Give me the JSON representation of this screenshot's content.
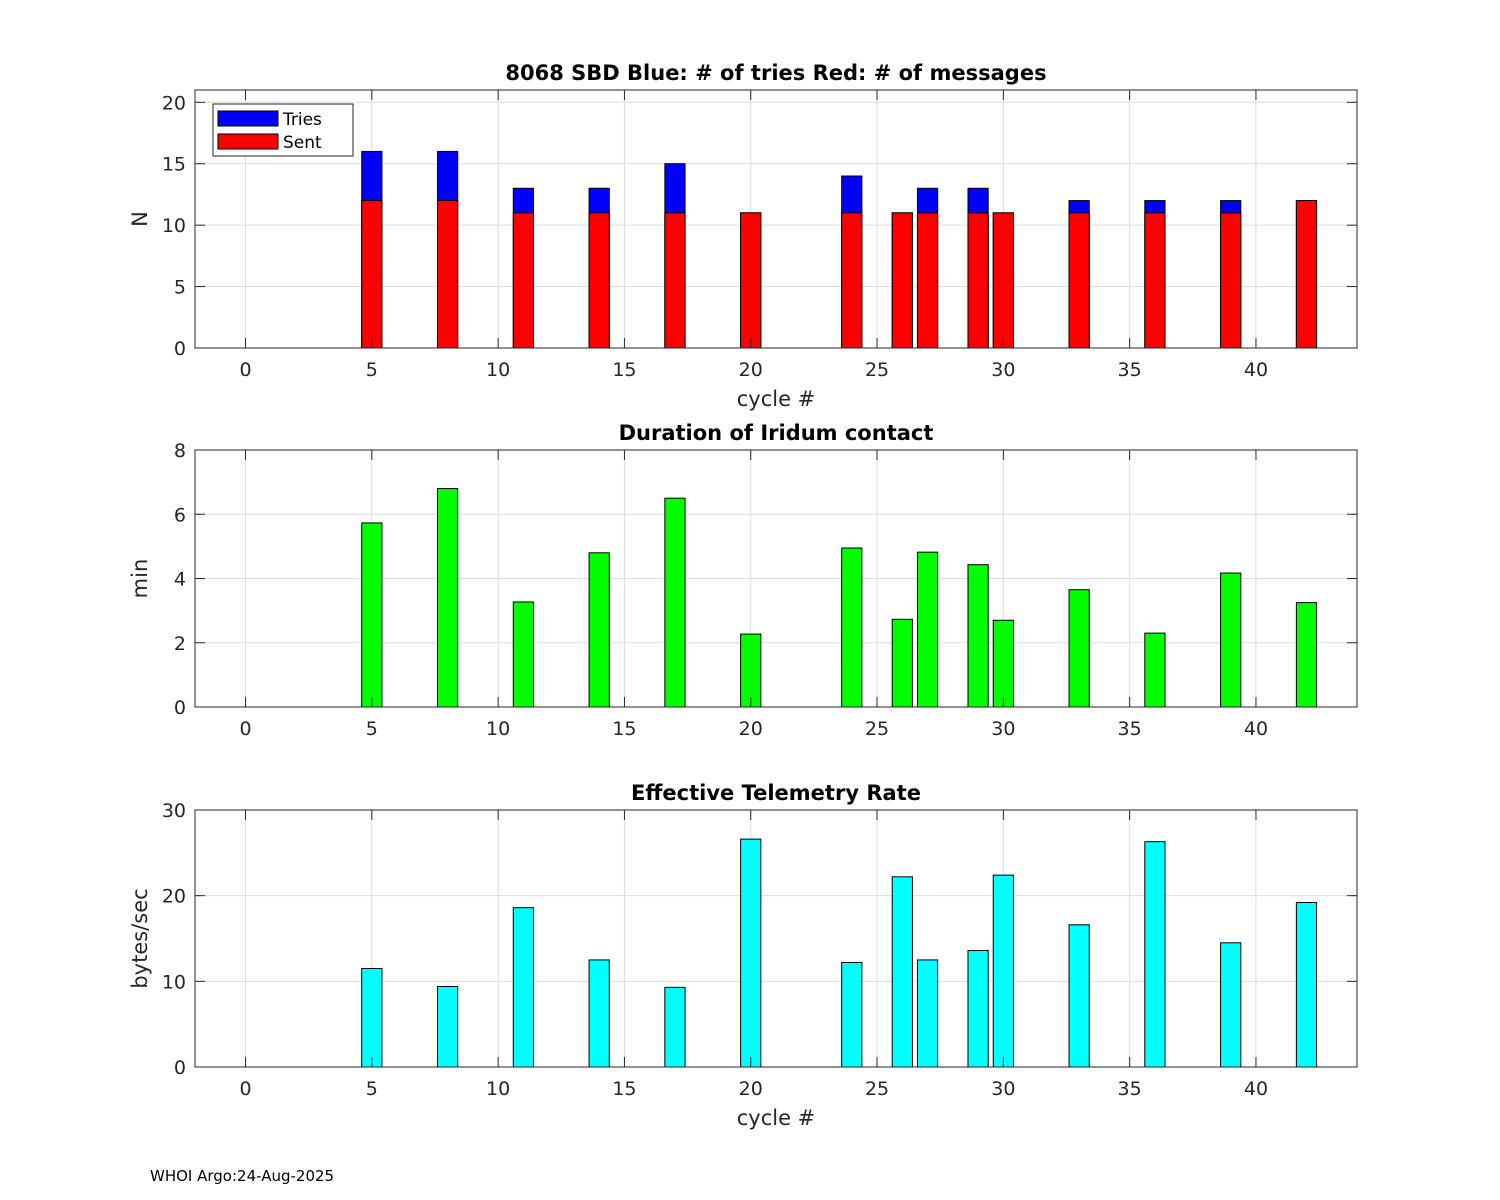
{
  "footer": "WHOI Argo:24-Aug-2025",
  "chart_data": [
    {
      "type": "bar",
      "title": "8068 SBD  Blue: # of tries   Red: # of messages",
      "xlabel": "cycle #",
      "ylabel": "N",
      "xlim": [
        -2,
        44
      ],
      "ylim": [
        0,
        21
      ],
      "xticks": [
        0,
        5,
        10,
        15,
        20,
        25,
        30,
        35,
        40
      ],
      "yticks": [
        0,
        5,
        10,
        15,
        20
      ],
      "legend": {
        "position": "top-left",
        "entries": [
          "Tries",
          "Sent"
        ]
      },
      "colors": {
        "Tries": "#0000ff",
        "Sent": "#ff0000"
      },
      "x": [
        5,
        8,
        11,
        14,
        17,
        20,
        24,
        26,
        27,
        29,
        30,
        33,
        36,
        39,
        42
      ],
      "series": [
        {
          "name": "Tries",
          "values": [
            16,
            16,
            13,
            13,
            15,
            11,
            14,
            11,
            13,
            13,
            11,
            12,
            12,
            12,
            12
          ]
        },
        {
          "name": "Sent",
          "values": [
            12,
            12,
            11,
            11,
            11,
            11,
            11,
            11,
            11,
            11,
            11,
            11,
            11,
            11,
            12
          ]
        }
      ]
    },
    {
      "type": "bar",
      "title": "Duration of Iridum contact",
      "xlabel": "",
      "ylabel": "min",
      "xlim": [
        -2,
        44
      ],
      "ylim": [
        0,
        8
      ],
      "xticks": [
        0,
        5,
        10,
        15,
        20,
        25,
        30,
        35,
        40
      ],
      "yticks": [
        0,
        2,
        4,
        6,
        8
      ],
      "color": "#00ff00",
      "x": [
        5,
        8,
        11,
        14,
        17,
        20,
        24,
        26,
        27,
        29,
        30,
        33,
        36,
        39,
        42
      ],
      "values": [
        5.73,
        6.8,
        3.27,
        4.8,
        6.5,
        2.27,
        4.95,
        2.73,
        4.82,
        4.43,
        2.7,
        3.65,
        2.3,
        4.17,
        3.25
      ]
    },
    {
      "type": "bar",
      "title": "Effective Telemetry Rate",
      "xlabel": "cycle #",
      "ylabel": "bytes/sec",
      "xlim": [
        -2,
        44
      ],
      "ylim": [
        0,
        30
      ],
      "xticks": [
        0,
        5,
        10,
        15,
        20,
        25,
        30,
        35,
        40
      ],
      "yticks": [
        0,
        10,
        20,
        30
      ],
      "color": "#00ffff",
      "x": [
        5,
        8,
        11,
        14,
        17,
        20,
        24,
        26,
        27,
        29,
        30,
        33,
        36,
        39,
        42
      ],
      "values": [
        11.5,
        9.4,
        18.6,
        12.5,
        9.3,
        26.6,
        12.2,
        22.2,
        12.5,
        13.6,
        22.4,
        16.6,
        26.3,
        14.5,
        19.2
      ]
    }
  ]
}
